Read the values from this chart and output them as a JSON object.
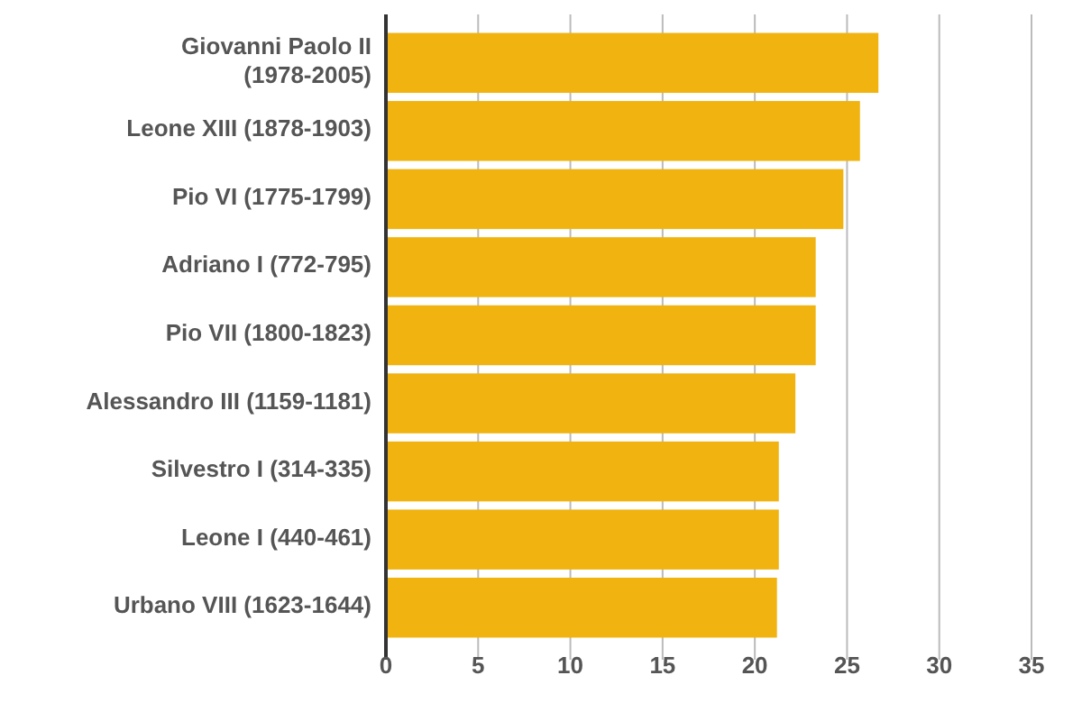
{
  "chart_data": {
    "type": "bar",
    "orientation": "horizontal",
    "categories": [
      "Giovanni Paolo II (1978-2005)",
      "Leone XIII (1878-1903)",
      "Pio VI (1775-1799)",
      "Adriano I (772-795)",
      "Pio VII (1800-1823)",
      "Alessandro III (1159-1181)",
      "Silvestro I (314-335)",
      "Leone I (440-461)",
      "Urbano VIII (1623-1644)"
    ],
    "values": [
      26.7,
      25.7,
      24.8,
      23.3,
      23.3,
      22.2,
      21.3,
      21.3,
      21.2
    ],
    "color": "#f0b30f",
    "xlim": [
      0,
      35
    ],
    "xticks": [
      0,
      5,
      10,
      15,
      20,
      25,
      30,
      35
    ],
    "grid": "x"
  }
}
